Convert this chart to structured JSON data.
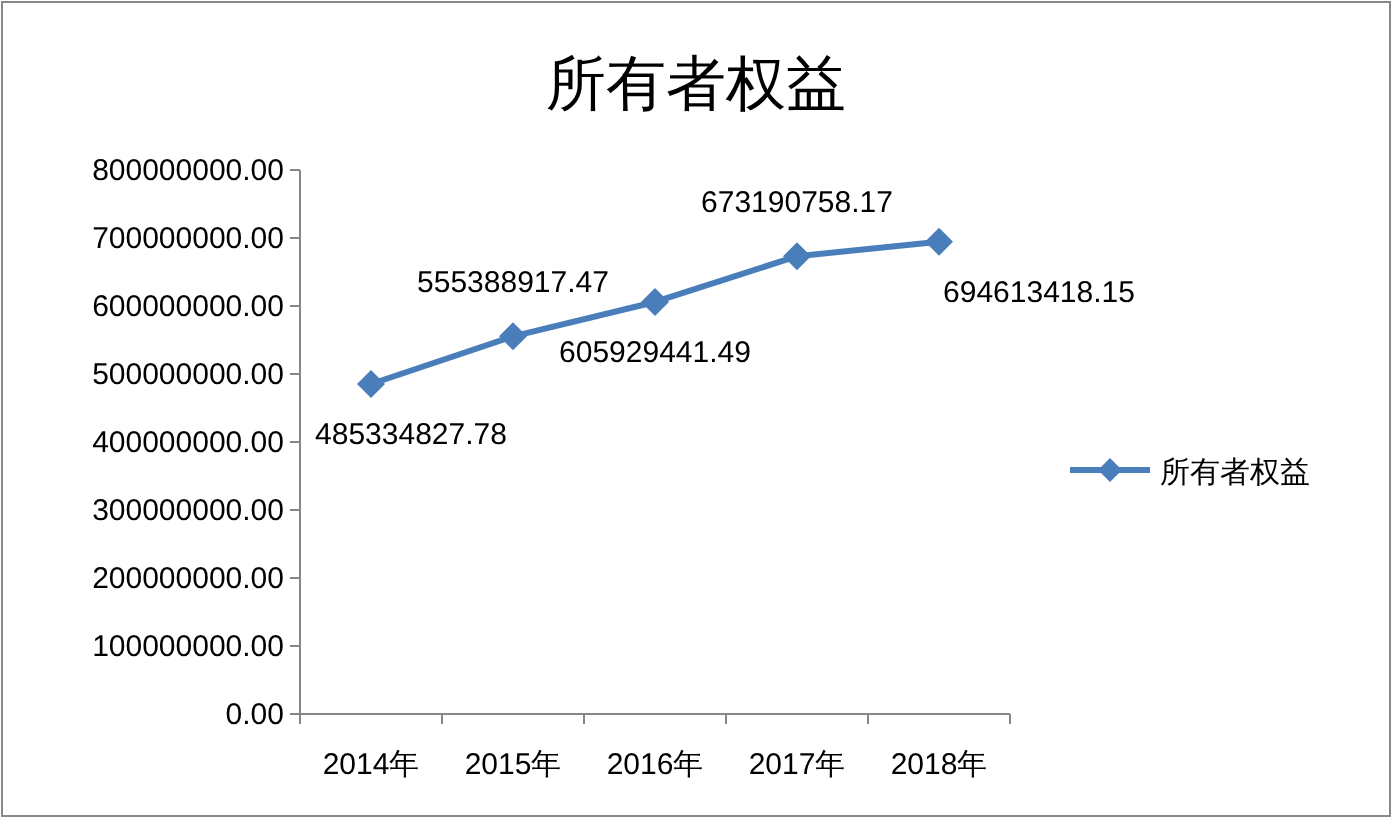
{
  "chart_data": {
    "type": "line",
    "title": "所有者权益",
    "categories": [
      "2014年",
      "2015年",
      "2016年",
      "2017年",
      "2018年"
    ],
    "series": [
      {
        "name": "所有者权益",
        "color": "#4a7ebb",
        "values": [
          485334827.78,
          555388917.47,
          605929441.49,
          673190758.17,
          694613418.15
        ]
      }
    ],
    "ylim": [
      0,
      800000000
    ],
    "yticks": [
      {
        "value": 0,
        "label": "0.00"
      },
      {
        "value": 100000000,
        "label": "100000000.00"
      },
      {
        "value": 200000000,
        "label": "200000000.00"
      },
      {
        "value": 300000000,
        "label": "300000000.00"
      },
      {
        "value": 400000000,
        "label": "400000000.00"
      },
      {
        "value": 500000000,
        "label": "500000000.00"
      },
      {
        "value": 600000000,
        "label": "600000000.00"
      },
      {
        "value": 700000000,
        "label": "700000000.00"
      },
      {
        "value": 800000000,
        "label": "800000000.00"
      }
    ],
    "data_labels": true,
    "legend": "right",
    "marker": "diamond",
    "line_style": "solid",
    "grid": false
  }
}
